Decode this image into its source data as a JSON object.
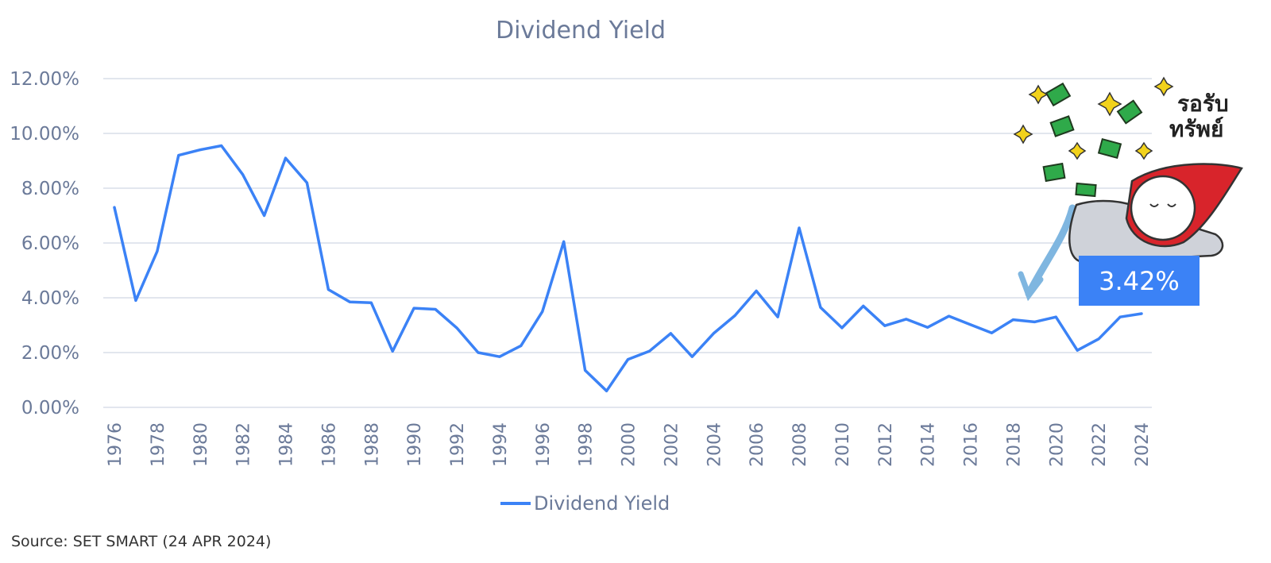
{
  "colors": {
    "line": "#3b82f6",
    "grid": "#d9dde8",
    "text": "#6b7a99",
    "callout_bg": "#3b82f6"
  },
  "source": "Source: SET SMART (24 APR 2024)",
  "callout": {
    "label": "3.42%"
  },
  "illustration": {
    "caption_line1": "รอรับ",
    "caption_line2": "ทรัพย์"
  },
  "chart_data": {
    "type": "line",
    "title": "Dividend Yield",
    "xlabel": "",
    "ylabel": "",
    "ylim": [
      0,
      12
    ],
    "y_ticks": [
      "0.00%",
      "2.00%",
      "4.00%",
      "6.00%",
      "8.00%",
      "10.00%",
      "12.00%"
    ],
    "x_ticks": [
      "1976",
      "1978",
      "1980",
      "1982",
      "1984",
      "1986",
      "1988",
      "1990",
      "1992",
      "1994",
      "1996",
      "1998",
      "2000",
      "2002",
      "2004",
      "2006",
      "2008",
      "2010",
      "2012",
      "2014",
      "2016",
      "2018",
      "2020",
      "2022",
      "2024"
    ],
    "grid": true,
    "legend": {
      "position": "bottom"
    },
    "x": [
      1976,
      1977,
      1978,
      1979,
      1980,
      1981,
      1982,
      1983,
      1984,
      1985,
      1986,
      1987,
      1988,
      1989,
      1990,
      1991,
      1992,
      1993,
      1994,
      1995,
      1996,
      1997,
      1998,
      1999,
      2000,
      2001,
      2002,
      2003,
      2004,
      2005,
      2006,
      2007,
      2008,
      2009,
      2010,
      2011,
      2012,
      2013,
      2014,
      2015,
      2016,
      2017,
      2018,
      2019,
      2020,
      2021,
      2022,
      2023,
      2024
    ],
    "series": [
      {
        "name": "Dividend Yield",
        "values": [
          7.3,
          3.9,
          5.7,
          9.2,
          9.4,
          9.55,
          8.5,
          7.0,
          9.1,
          8.2,
          4.3,
          3.85,
          3.82,
          2.05,
          3.62,
          3.58,
          2.9,
          2.0,
          1.85,
          2.25,
          3.5,
          6.05,
          1.35,
          0.6,
          1.75,
          2.05,
          2.7,
          1.85,
          2.7,
          3.35,
          4.25,
          3.3,
          6.55,
          3.65,
          2.9,
          3.7,
          2.98,
          3.22,
          2.92,
          3.33,
          3.02,
          2.72,
          3.2,
          3.12,
          3.3,
          2.08,
          2.5,
          3.3,
          3.42
        ]
      }
    ]
  }
}
